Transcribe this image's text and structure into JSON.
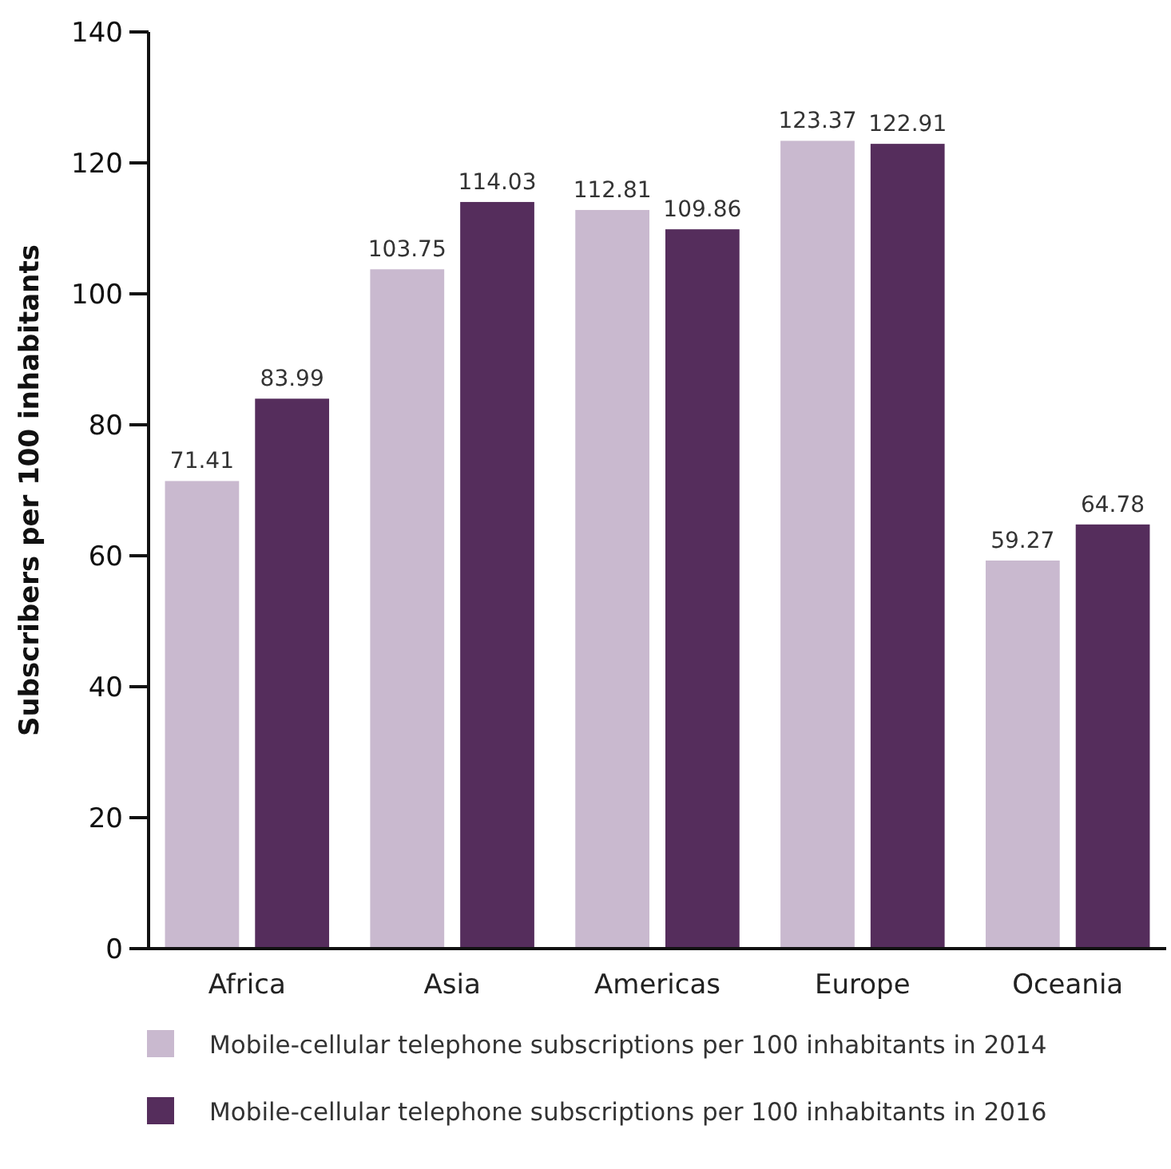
{
  "chart_data": {
    "type": "bar",
    "ylabel": "Subscribers per 100 inhabitants",
    "categories": [
      "Africa",
      "Asia",
      "Americas",
      "Europe",
      "Oceania"
    ],
    "series": [
      {
        "name": "Mobile-cellular telephone subscriptions per 100 inhabitants in 2014",
        "color": "#c9b9cf",
        "values": [
          71.41,
          103.75,
          112.81,
          123.37,
          59.27
        ]
      },
      {
        "name": "Mobile-cellular telephone subscriptions per 100 inhabitants in 2016",
        "color": "#552d5c",
        "values": [
          83.99,
          114.03,
          109.86,
          122.91,
          64.78
        ]
      }
    ],
    "ylim": [
      0,
      140
    ],
    "yticks": [
      0,
      20,
      40,
      60,
      80,
      100,
      120,
      140
    ],
    "grid": false,
    "legend": "bottom",
    "data_labels": true
  }
}
